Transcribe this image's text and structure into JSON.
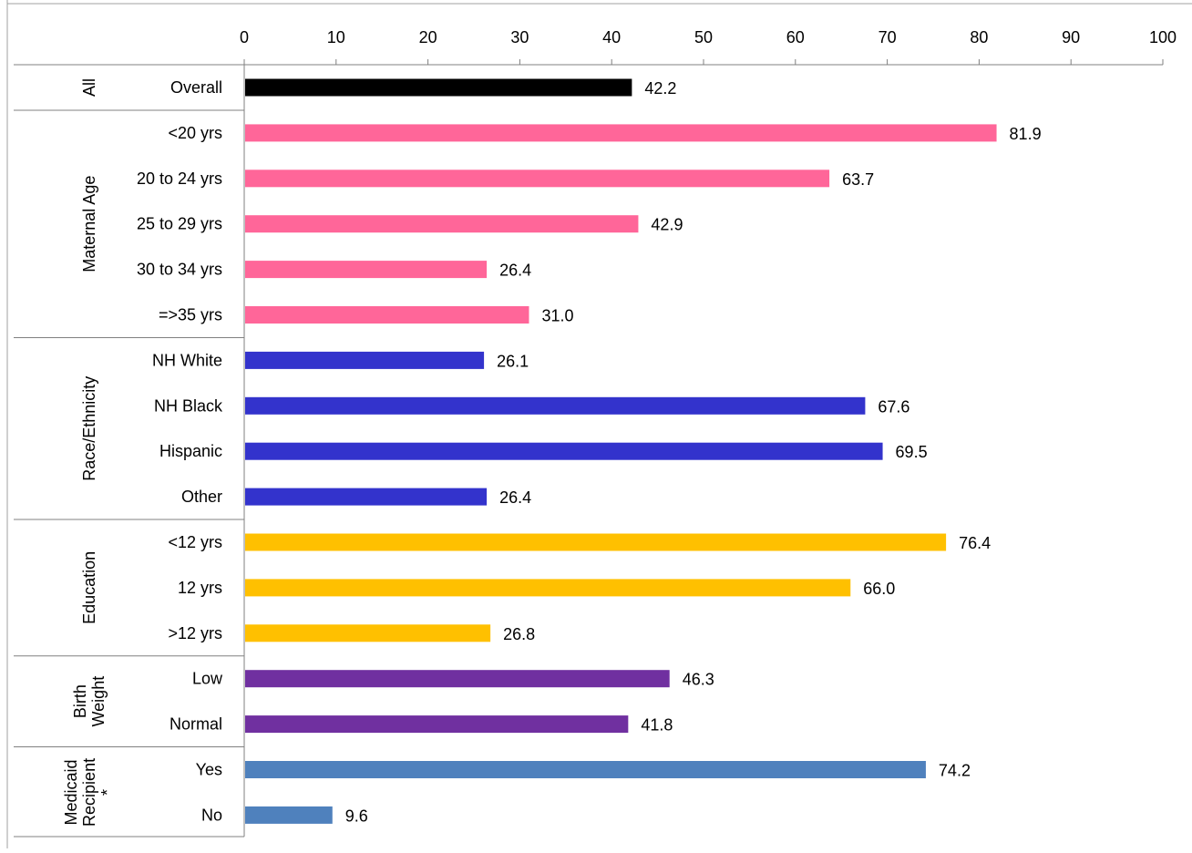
{
  "chart_data": {
    "type": "bar",
    "orientation": "horizontal",
    "xlim": [
      0,
      100
    ],
    "x_ticks": [
      0,
      10,
      20,
      30,
      40,
      50,
      60,
      70,
      80,
      90,
      100
    ],
    "x_ticks_position": "top",
    "grid": false,
    "legend": "none",
    "groups": [
      {
        "name": "All",
        "color": "#000000",
        "categories": [
          "Overall"
        ],
        "values": [
          42.2
        ],
        "labels": [
          "42.2"
        ]
      },
      {
        "name": "Maternal Age",
        "color": "#FF6699",
        "categories": [
          "<20 yrs",
          "20 to 24 yrs",
          "25 to 29 yrs",
          "30 to 34 yrs",
          "=>35 yrs"
        ],
        "values": [
          81.9,
          63.7,
          42.9,
          26.4,
          31.0
        ],
        "labels": [
          "81.9",
          "63.7",
          "42.9",
          "26.4",
          "31.0"
        ]
      },
      {
        "name": "Race/Ethnicity",
        "color": "#3333CC",
        "categories": [
          "NH White",
          "NH Black",
          "Hispanic",
          "Other"
        ],
        "values": [
          26.1,
          67.6,
          69.5,
          26.4
        ],
        "labels": [
          "26.1",
          "67.6",
          "69.5",
          "26.4"
        ]
      },
      {
        "name": "Education",
        "color": "#FFC000",
        "categories": [
          "<12 yrs",
          "12 yrs",
          ">12 yrs"
        ],
        "values": [
          76.4,
          66.0,
          26.8
        ],
        "labels": [
          "76.4",
          "66.0",
          "26.8"
        ]
      },
      {
        "name": "Birth Weight",
        "name_lines": [
          "Birth",
          "Weight"
        ],
        "color": "#7030A0",
        "categories": [
          "Low",
          "Normal"
        ],
        "values": [
          46.3,
          41.8
        ],
        "labels": [
          "46.3",
          "41.8"
        ]
      },
      {
        "name": "Medicaid Recipient *",
        "name_lines": [
          "Medicaid",
          "Recipient",
          "*"
        ],
        "color": "#4F81BD",
        "categories": [
          "Yes",
          "No"
        ],
        "values": [
          74.2,
          9.6
        ],
        "labels": [
          "74.2",
          "9.6"
        ]
      }
    ]
  }
}
